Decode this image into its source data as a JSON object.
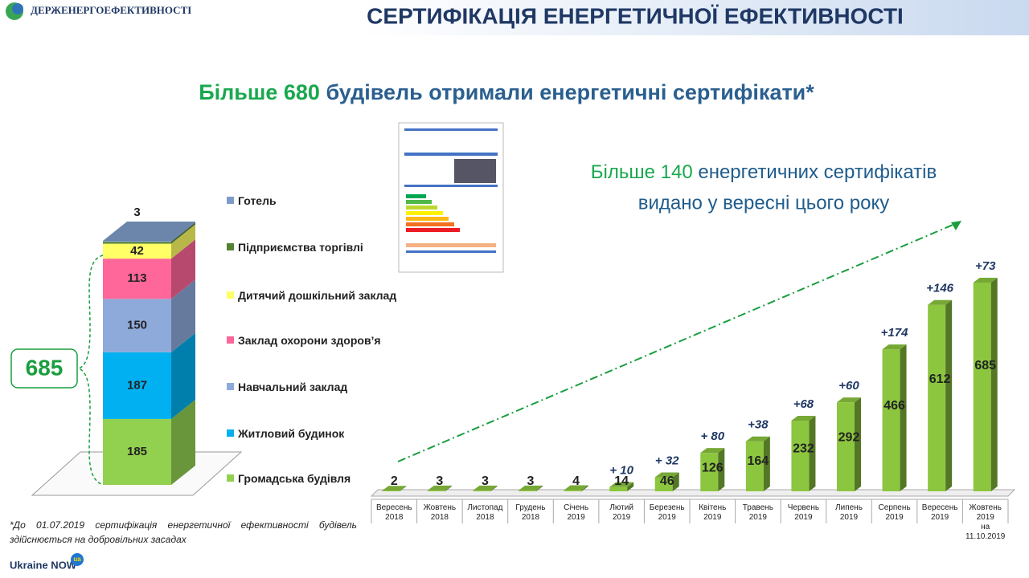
{
  "header": {
    "logo": "ДЕРЖЕНЕРГОЕФЕКТИВНОСТІ",
    "title": "СЕРТИФІКАЦІЯ ЕНЕРГЕТИЧНОЇ ЕФЕКТИВНОСТІ"
  },
  "subtitle": {
    "highlight": "Більше 680",
    "rest": "будівель отримали енергетичні сертифікати*"
  },
  "callout": {
    "highlight": "Більше 140",
    "line1_rest": "енергетичних сертифікатів",
    "line2": "видано у вересні цього року"
  },
  "footnote": "*До 01.07.2019 сертифікація енергетичної ефективності будівель здійснюється на добровільних засадах",
  "brand": {
    "name": "Ukraine NOW",
    "suffix": "ua"
  },
  "chart_data": [
    {
      "type": "stacked_bar",
      "total": 685,
      "series": [
        {
          "name": "Громадська будівля",
          "color": "#92d050",
          "values": [
            185
          ]
        },
        {
          "name": "Житловий будинок",
          "color": "#00b0f0",
          "values": [
            187
          ]
        },
        {
          "name": "Навчальний заклад",
          "color": "#8eaadb",
          "values": [
            150
          ]
        },
        {
          "name": "Заклад охорони здоров’я",
          "color": "#ff6699",
          "values": [
            113
          ]
        },
        {
          "name": "Дитячий дошкільний заклад",
          "color": "#ffff66",
          "values": [
            42
          ]
        },
        {
          "name": "Підприємства торгівлі",
          "color": "#548235",
          "values": [
            5
          ]
        },
        {
          "name": "Готель",
          "color": "#7f9cc8",
          "values": [
            3
          ]
        }
      ]
    },
    {
      "type": "bar",
      "color": "#8cc63f",
      "categories": [
        "Вересень\n2018",
        "Жовтень\n2018",
        "Листопад\n2018",
        "Грудень\n2018",
        "Січень\n2019",
        "Лютий\n2019",
        "Березень\n2019",
        "Квітень\n2019",
        "Травень\n2019",
        "Червень\n2019",
        "Липень\n2019",
        "Серпень\n2019",
        "Вересень\n2019",
        "Жовтень\n2019\nна\n11.10.2019"
      ],
      "values": [
        2,
        3,
        3,
        3,
        4,
        14,
        46,
        126,
        164,
        232,
        292,
        466,
        612,
        685
      ],
      "increments": [
        null,
        null,
        null,
        null,
        null,
        10,
        32,
        80,
        38,
        68,
        60,
        174,
        146,
        73
      ],
      "increment_labels": [
        null,
        null,
        null,
        null,
        null,
        "+ 10",
        "+ 32",
        "+ 80",
        "+38",
        "+68",
        "+60",
        "+174",
        "+146",
        "+73"
      ]
    }
  ]
}
